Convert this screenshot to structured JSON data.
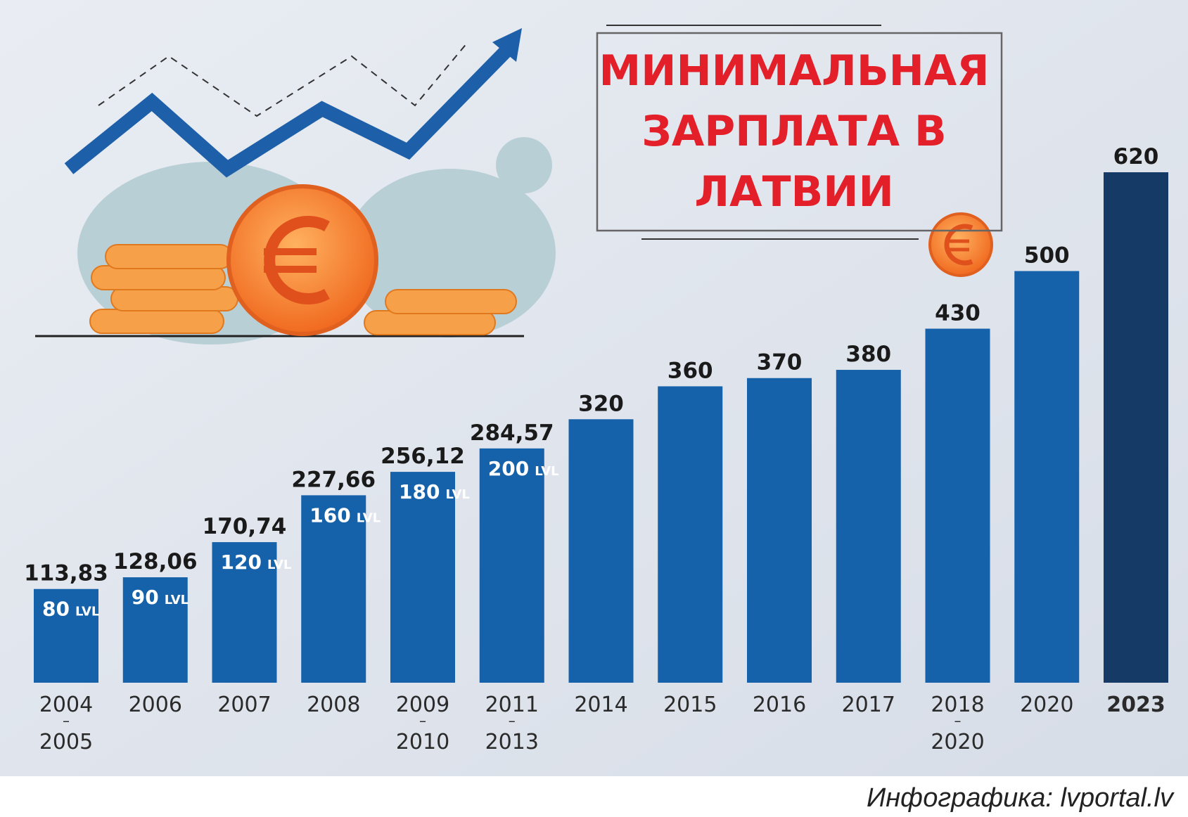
{
  "chart_data": {
    "type": "bar",
    "title": [
      "МИНИМАЛЬНАЯ",
      "ЗАРПЛАТА В",
      "ЛАТВИИ"
    ],
    "categories": [
      "2004–2005",
      "2006",
      "2007",
      "2008",
      "2009–2010",
      "2011–2013",
      "2014",
      "2015",
      "2016",
      "2017",
      "2018–2020",
      "2020",
      "2023"
    ],
    "values": [
      113.83,
      128.06,
      170.74,
      227.66,
      256.12,
      284.57,
      320,
      360,
      370,
      380,
      430,
      500,
      620
    ],
    "value_labels": [
      "113,83",
      "128,06",
      "170,74",
      "227,66",
      "256,12",
      "284,57",
      "320",
      "360",
      "370",
      "380",
      "430",
      "500",
      "620"
    ],
    "lvl_values": [
      80,
      90,
      120,
      160,
      180,
      200
    ],
    "lvl_unit": "LVL",
    "color": "#1662aa",
    "highlight_category": "2023",
    "highlight_color": "#163a66",
    "source": "Инфографика: lvportal.lv"
  }
}
